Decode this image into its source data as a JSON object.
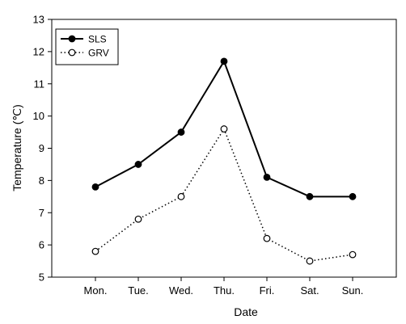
{
  "chart_data": {
    "type": "line",
    "title": "",
    "xlabel": "Date",
    "ylabel": "Temperature (℃)",
    "categories": [
      "Mon.",
      "Tue.",
      "Wed.",
      "Thu.",
      "Fri.",
      "Sat.",
      "Sun."
    ],
    "ylim": [
      5,
      13
    ],
    "yticks": [
      5,
      6,
      7,
      8,
      9,
      10,
      11,
      12,
      13
    ],
    "grid": false,
    "legend_position": "top-left",
    "series": [
      {
        "name": "SLS",
        "values": [
          7.8,
          8.5,
          9.5,
          11.7,
          8.1,
          7.5,
          7.5
        ],
        "line_style": "solid",
        "marker": "filled-circle",
        "color": "#000000"
      },
      {
        "name": "GRV",
        "values": [
          5.8,
          6.8,
          7.5,
          9.6,
          6.2,
          5.5,
          5.7
        ],
        "line_style": "dotted",
        "marker": "open-circle",
        "color": "#000000"
      }
    ]
  }
}
